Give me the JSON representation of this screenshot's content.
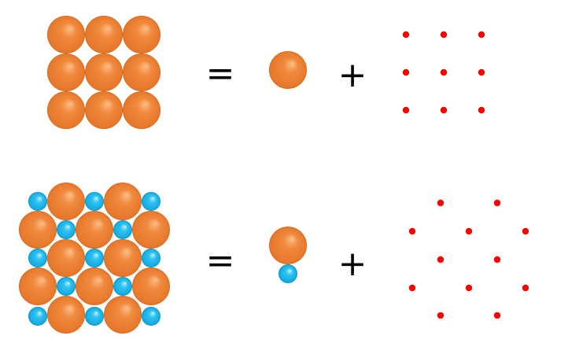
{
  "rows": [
    {
      "crystal": "crystal-simple-square",
      "operator_equals": "=",
      "basis": "basis-single-atom",
      "operator_plus": "+",
      "lattice": "square-lattice-points"
    },
    {
      "crystal": "crystal-two-atom-basis",
      "operator_equals": "=",
      "basis": "basis-two-atom",
      "operator_plus": "+",
      "lattice": "hexagonal-lattice-points"
    }
  ],
  "colors": {
    "atom_large": "#ee7f33",
    "atom_large_edge": "#d96a1f",
    "atom_small": "#1ab8ee",
    "atom_small_edge": "#0e96c8",
    "lattice_point": "#ff0000",
    "background": "#ffffff"
  }
}
